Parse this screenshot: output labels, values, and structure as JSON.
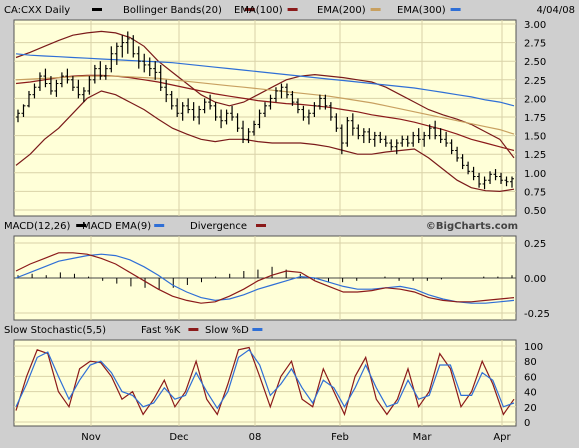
{
  "header": {
    "symbol": "CA:CXX Daily",
    "date": "4/04/08",
    "legend": [
      {
        "label": "Bollinger Bands(20)",
        "color": "#7a1a1a"
      },
      {
        "label": "EMA(100)",
        "color": "#8b1a1a"
      },
      {
        "label": "EMA(200)",
        "color": "#c8a060"
      },
      {
        "label": "EMA(300)",
        "color": "#2f6fd6"
      }
    ]
  },
  "colors": {
    "panel_bg": "#ffffd8",
    "page_bg": "#cfcfcf",
    "grid": "#d9d2a8",
    "bar": "#000000",
    "bollinger": "#7a1a1a",
    "ema100": "#8b1a1a",
    "ema200": "#c8a060",
    "ema300": "#2f6fd6",
    "macd": "#2f6fd6",
    "macd_ema": "#8b1a1a",
    "fastk": "#8b1a1a",
    "slowd": "#2f6fd6"
  },
  "macd_header": {
    "items": [
      {
        "label": "MACD(12,26)",
        "color": "#000000"
      },
      {
        "label": "MACD EMA(9)",
        "color": "#2f6fd6"
      },
      {
        "label": "Divergence",
        "color": "#8b1a1a"
      }
    ],
    "watermark": "©BigCharts.com"
  },
  "stoch_header": {
    "items": [
      {
        "label": "Slow Stochastic(5,5)",
        "color": ""
      },
      {
        "label": "Fast %K",
        "color": "#8b1a1a"
      },
      {
        "label": "Slow %D",
        "color": "#2f6fd6"
      }
    ]
  },
  "chart_data": [
    {
      "type": "line",
      "title": "CA:CXX Daily",
      "x_labels": [
        "Nov",
        "Dec",
        "08",
        "Feb",
        "Mar",
        "Apr"
      ],
      "ylim": [
        0.5,
        3.0
      ],
      "y_ticks": [
        "3.00",
        "2.75",
        "2.50",
        "2.25",
        "2.00",
        "1.75",
        "1.50",
        "1.25",
        "1.00",
        "0.75",
        "0.50"
      ],
      "price_bars": [
        [
          1.75,
          1.85,
          1.68,
          1.8
        ],
        [
          1.8,
          1.92,
          1.75,
          1.9
        ],
        [
          1.9,
          2.1,
          1.88,
          2.05
        ],
        [
          2.05,
          2.2,
          2.0,
          2.15
        ],
        [
          2.15,
          2.35,
          2.1,
          2.3
        ],
        [
          2.3,
          2.4,
          2.15,
          2.2
        ],
        [
          2.2,
          2.3,
          2.05,
          2.1
        ],
        [
          2.1,
          2.25,
          2.02,
          2.2
        ],
        [
          2.2,
          2.35,
          2.15,
          2.3
        ],
        [
          2.3,
          2.4,
          2.2,
          2.25
        ],
        [
          2.25,
          2.3,
          2.1,
          2.15
        ],
        [
          2.15,
          2.25,
          2.0,
          2.05
        ],
        [
          2.05,
          2.15,
          1.95,
          2.1
        ],
        [
          2.1,
          2.3,
          2.05,
          2.25
        ],
        [
          2.25,
          2.45,
          2.2,
          2.4
        ],
        [
          2.4,
          2.5,
          2.25,
          2.3
        ],
        [
          2.3,
          2.45,
          2.25,
          2.4
        ],
        [
          2.4,
          2.7,
          2.35,
          2.6
        ],
        [
          2.6,
          2.75,
          2.45,
          2.7
        ],
        [
          2.7,
          2.85,
          2.55,
          2.75
        ],
        [
          2.75,
          2.9,
          2.6,
          2.8
        ],
        [
          2.8,
          2.85,
          2.55,
          2.6
        ],
        [
          2.6,
          2.7,
          2.4,
          2.5
        ],
        [
          2.5,
          2.6,
          2.35,
          2.45
        ],
        [
          2.45,
          2.55,
          2.3,
          2.4
        ],
        [
          2.4,
          2.5,
          2.25,
          2.35
        ],
        [
          2.35,
          2.45,
          2.1,
          2.15
        ],
        [
          2.15,
          2.25,
          1.95,
          2.05
        ],
        [
          2.05,
          2.1,
          1.85,
          1.9
        ],
        [
          1.9,
          2.0,
          1.75,
          1.8
        ],
        [
          1.8,
          1.95,
          1.7,
          1.9
        ],
        [
          1.9,
          2.0,
          1.8,
          1.85
        ],
        [
          1.85,
          1.95,
          1.7,
          1.75
        ],
        [
          1.75,
          1.9,
          1.65,
          1.85
        ],
        [
          1.85,
          2.0,
          1.8,
          1.95
        ],
        [
          1.95,
          2.05,
          1.85,
          1.9
        ],
        [
          1.9,
          1.95,
          1.7,
          1.75
        ],
        [
          1.75,
          1.85,
          1.6,
          1.7
        ],
        [
          1.7,
          1.85,
          1.65,
          1.8
        ],
        [
          1.8,
          1.9,
          1.7,
          1.75
        ],
        [
          1.75,
          1.8,
          1.55,
          1.6
        ],
        [
          1.6,
          1.7,
          1.4,
          1.45
        ],
        [
          1.45,
          1.6,
          1.4,
          1.55
        ],
        [
          1.55,
          1.7,
          1.5,
          1.65
        ],
        [
          1.65,
          1.85,
          1.6,
          1.8
        ],
        [
          1.8,
          1.95,
          1.75,
          1.9
        ],
        [
          1.9,
          2.05,
          1.85,
          2.0
        ],
        [
          2.0,
          2.15,
          1.95,
          2.1
        ],
        [
          2.1,
          2.2,
          2.0,
          2.15
        ],
        [
          2.15,
          2.2,
          2.0,
          2.05
        ],
        [
          2.05,
          2.1,
          1.9,
          1.95
        ],
        [
          1.95,
          2.0,
          1.8,
          1.85
        ],
        [
          1.85,
          1.9,
          1.7,
          1.75
        ],
        [
          1.75,
          1.85,
          1.65,
          1.8
        ],
        [
          1.8,
          1.95,
          1.75,
          1.9
        ],
        [
          1.9,
          2.05,
          1.85,
          2.0
        ],
        [
          2.0,
          2.05,
          1.85,
          1.9
        ],
        [
          1.9,
          1.95,
          1.7,
          1.75
        ],
        [
          1.75,
          1.8,
          1.55,
          1.6
        ],
        [
          1.6,
          1.65,
          1.25,
          1.4
        ],
        [
          1.4,
          1.75,
          1.35,
          1.7
        ],
        [
          1.7,
          1.8,
          1.5,
          1.6
        ],
        [
          1.6,
          1.65,
          1.45,
          1.5
        ],
        [
          1.5,
          1.6,
          1.4,
          1.55
        ],
        [
          1.55,
          1.6,
          1.4,
          1.45
        ],
        [
          1.45,
          1.55,
          1.35,
          1.5
        ],
        [
          1.5,
          1.55,
          1.4,
          1.45
        ],
        [
          1.45,
          1.5,
          1.35,
          1.4
        ],
        [
          1.4,
          1.45,
          1.3,
          1.35
        ],
        [
          1.35,
          1.45,
          1.25,
          1.4
        ],
        [
          1.4,
          1.5,
          1.35,
          1.45
        ],
        [
          1.45,
          1.5,
          1.35,
          1.4
        ],
        [
          1.4,
          1.55,
          1.35,
          1.5
        ],
        [
          1.5,
          1.6,
          1.4,
          1.45
        ],
        [
          1.45,
          1.55,
          1.35,
          1.5
        ],
        [
          1.5,
          1.65,
          1.45,
          1.6
        ],
        [
          1.6,
          1.7,
          1.45,
          1.5
        ],
        [
          1.5,
          1.6,
          1.4,
          1.45
        ],
        [
          1.45,
          1.55,
          1.35,
          1.4
        ],
        [
          1.4,
          1.45,
          1.25,
          1.3
        ],
        [
          1.3,
          1.35,
          1.15,
          1.2
        ],
        [
          1.2,
          1.25,
          1.05,
          1.1
        ],
        [
          1.1,
          1.15,
          0.98,
          1.02
        ],
        [
          1.02,
          1.08,
          0.9,
          0.95
        ],
        [
          0.95,
          1.0,
          0.8,
          0.85
        ],
        [
          0.85,
          0.95,
          0.78,
          0.9
        ],
        [
          0.9,
          1.02,
          0.85,
          0.98
        ],
        [
          0.98,
          1.05,
          0.9,
          0.95
        ],
        [
          0.95,
          1.0,
          0.85,
          0.9
        ],
        [
          0.9,
          0.95,
          0.82,
          0.88
        ],
        [
          0.88,
          0.95,
          0.8,
          0.92
        ]
      ],
      "series": [
        {
          "name": "Bollinger Bands(20) upper",
          "values": [
            2.55,
            2.62,
            2.7,
            2.78,
            2.85,
            2.88,
            2.9,
            2.88,
            2.82,
            2.7,
            2.5,
            2.35,
            2.2,
            2.05,
            1.95,
            1.9,
            1.95,
            2.05,
            2.15,
            2.25,
            2.3,
            2.32,
            2.3,
            2.28,
            2.25,
            2.22,
            2.15,
            2.05,
            1.95,
            1.85,
            1.78,
            1.72,
            1.65,
            1.55,
            1.45,
            1.2
          ]
        },
        {
          "name": "Bollinger Bands(20) lower",
          "values": [
            1.1,
            1.25,
            1.45,
            1.6,
            1.8,
            2.0,
            2.1,
            2.05,
            1.95,
            1.85,
            1.72,
            1.6,
            1.52,
            1.45,
            1.42,
            1.45,
            1.45,
            1.42,
            1.4,
            1.4,
            1.4,
            1.38,
            1.35,
            1.3,
            1.25,
            1.25,
            1.28,
            1.3,
            1.32,
            1.2,
            1.05,
            0.9,
            0.8,
            0.76,
            0.75,
            0.78
          ]
        },
        {
          "name": "EMA(100)",
          "values": [
            2.2,
            2.22,
            2.25,
            2.28,
            2.3,
            2.31,
            2.31,
            2.3,
            2.28,
            2.25,
            2.22,
            2.18,
            2.14,
            2.1,
            2.06,
            2.03,
            2.0,
            1.97,
            1.95,
            1.93,
            1.92,
            1.9,
            1.88,
            1.85,
            1.82,
            1.78,
            1.75,
            1.72,
            1.68,
            1.63,
            1.58,
            1.52,
            1.45,
            1.4,
            1.35,
            1.3
          ]
        },
        {
          "name": "EMA(200)",
          "values": [
            2.25,
            2.26,
            2.27,
            2.28,
            2.29,
            2.3,
            2.3,
            2.3,
            2.29,
            2.28,
            2.27,
            2.25,
            2.23,
            2.21,
            2.19,
            2.17,
            2.15,
            2.13,
            2.11,
            2.09,
            2.07,
            2.05,
            2.03,
            2.0,
            1.97,
            1.94,
            1.9,
            1.86,
            1.82,
            1.78,
            1.74,
            1.7,
            1.66,
            1.62,
            1.58,
            1.52
          ]
        },
        {
          "name": "EMA(300)",
          "values": [
            2.6,
            2.58,
            2.57,
            2.56,
            2.55,
            2.54,
            2.53,
            2.52,
            2.51,
            2.5,
            2.49,
            2.48,
            2.46,
            2.44,
            2.42,
            2.4,
            2.38,
            2.36,
            2.34,
            2.32,
            2.3,
            2.28,
            2.26,
            2.24,
            2.22,
            2.2,
            2.18,
            2.16,
            2.14,
            2.11,
            2.08,
            2.05,
            2.02,
            1.98,
            1.95,
            1.9
          ]
        }
      ]
    },
    {
      "type": "line",
      "title": "MACD(12,26)",
      "ylim": [
        -0.3,
        0.3
      ],
      "y_ticks": [
        "0.25",
        "0.00",
        "-0.25"
      ],
      "series": [
        {
          "name": "MACD EMA(9)",
          "values": [
            0.0,
            0.04,
            0.08,
            0.12,
            0.14,
            0.16,
            0.17,
            0.16,
            0.13,
            0.08,
            0.02,
            -0.05,
            -0.1,
            -0.14,
            -0.16,
            -0.15,
            -0.12,
            -0.08,
            -0.05,
            -0.02,
            0.01,
            0.0,
            -0.03,
            -0.06,
            -0.08,
            -0.08,
            -0.07,
            -0.06,
            -0.08,
            -0.12,
            -0.15,
            -0.17,
            -0.18,
            -0.18,
            -0.17,
            -0.16
          ]
        },
        {
          "name": "Divergence",
          "values": [
            0.05,
            0.1,
            0.14,
            0.18,
            0.18,
            0.17,
            0.14,
            0.1,
            0.04,
            -0.02,
            -0.08,
            -0.13,
            -0.16,
            -0.18,
            -0.17,
            -0.13,
            -0.08,
            -0.02,
            0.02,
            0.05,
            0.04,
            -0.02,
            -0.06,
            -0.1,
            -0.1,
            -0.09,
            -0.07,
            -0.08,
            -0.1,
            -0.14,
            -0.16,
            -0.17,
            -0.17,
            -0.16,
            -0.15,
            -0.14
          ]
        },
        {
          "name": "MACD(12,26)",
          "values": [
            0.02,
            0.03,
            0.02,
            0.04,
            0.03,
            0.01,
            -0.02,
            -0.04,
            -0.06,
            -0.07,
            -0.08,
            -0.07,
            -0.05,
            -0.03,
            0.01,
            0.03,
            0.05,
            0.06,
            0.08,
            0.06,
            0.03,
            -0.01,
            -0.03,
            -0.03,
            -0.02,
            0.0,
            0.01,
            -0.02,
            -0.02,
            -0.02,
            -0.01,
            0.0,
            0.0,
            0.01,
            0.01,
            0.02
          ]
        }
      ]
    },
    {
      "type": "line",
      "title": "Slow Stochastic(5,5)",
      "ylim": [
        0,
        100
      ],
      "y_ticks": [
        "100",
        "80",
        "60",
        "40",
        "20",
        "0"
      ],
      "series": [
        {
          "name": "Fast %K",
          "values": [
            15,
            60,
            95,
            90,
            40,
            20,
            70,
            80,
            78,
            60,
            30,
            40,
            10,
            30,
            55,
            20,
            40,
            80,
            30,
            10,
            50,
            95,
            98,
            60,
            20,
            60,
            80,
            30,
            20,
            70,
            40,
            10,
            60,
            85,
            30,
            10,
            30,
            70,
            20,
            40,
            90,
            70,
            20,
            40,
            80,
            50,
            10,
            30
          ]
        },
        {
          "name": "Slow %D",
          "values": [
            20,
            50,
            85,
            92,
            60,
            30,
            55,
            75,
            80,
            65,
            40,
            35,
            20,
            25,
            45,
            30,
            35,
            65,
            40,
            18,
            40,
            85,
            95,
            75,
            35,
            50,
            70,
            45,
            25,
            55,
            45,
            20,
            45,
            75,
            45,
            20,
            25,
            55,
            30,
            35,
            75,
            75,
            35,
            35,
            65,
            55,
            20,
            25
          ]
        }
      ]
    }
  ]
}
